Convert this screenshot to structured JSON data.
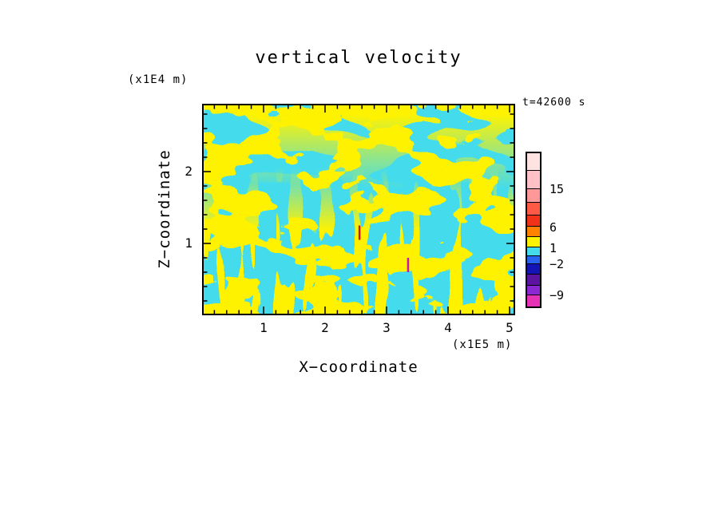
{
  "chart_data": {
    "type": "heatmap",
    "title": "vertical velocity",
    "time_annotation": "t=42600 s",
    "grid": false,
    "legend_position": "right",
    "axes": {
      "x": {
        "label": "X−coordinate",
        "unit": "(x1E5 m)",
        "min": 0,
        "max": 5.09,
        "major_ticks": [
          1,
          2,
          3,
          4,
          5
        ],
        "minor_step": 0.2
      },
      "z": {
        "label": "Z−coordinate",
        "unit": "(x1E4 m)",
        "min": 0,
        "max": 2.94,
        "major_ticks": [
          1,
          2
        ],
        "minor_step": 0.2
      }
    },
    "field": {
      "description": "Turbulent vertical-velocity cross-section rendered as a two-tone field: cyan regions are weak/negative w (between levels −2 and 1), yellow regions are positive w (between levels 1 and 6); blobs are horizontally elongated aloft and form narrow vertical streaks near the lower boundary.",
      "positive_color": "#FFF200",
      "negative_color": "#44DCEC"
    },
    "extrema": [
      {
        "x": 2.56,
        "z_from": 1.05,
        "z_to": 1.25,
        "color": "#C81414",
        "note": "strong positive streak"
      },
      {
        "x": 3.35,
        "z_from": 0.6,
        "z_to": 0.8,
        "color": "#C814B4",
        "note": "strong negative streak"
      }
    ],
    "colorbar": {
      "levels": [
        -9,
        -2,
        1,
        6,
        15
      ],
      "labels": [
        {
          "text": "15",
          "pos": 0.24
        },
        {
          "text": "6",
          "pos": 0.485
        },
        {
          "text": "1",
          "pos": 0.615
        },
        {
          "text": "−2",
          "pos": 0.72
        },
        {
          "text": "−9",
          "pos": 0.92
        }
      ],
      "segments": [
        {
          "color": "#FFE3E0",
          "frac": 0.115
        },
        {
          "color": "#FFC1C6",
          "frac": 0.125
        },
        {
          "color": "#FF9898",
          "frac": 0.09
        },
        {
          "color": "#FF5A46",
          "frac": 0.08
        },
        {
          "color": "#F03218",
          "frac": 0.075
        },
        {
          "color": "#FF8200",
          "frac": 0.065
        },
        {
          "color": "#FFF200",
          "frac": 0.065
        },
        {
          "color": "#44DCEC",
          "frac": 0.055
        },
        {
          "color": "#2864F0",
          "frac": 0.05
        },
        {
          "color": "#1414B4",
          "frac": 0.07
        },
        {
          "color": "#5A14A0",
          "frac": 0.07
        },
        {
          "color": "#8C28D2",
          "frac": 0.06
        },
        {
          "color": "#E632B4",
          "frac": 0.08
        }
      ]
    }
  }
}
